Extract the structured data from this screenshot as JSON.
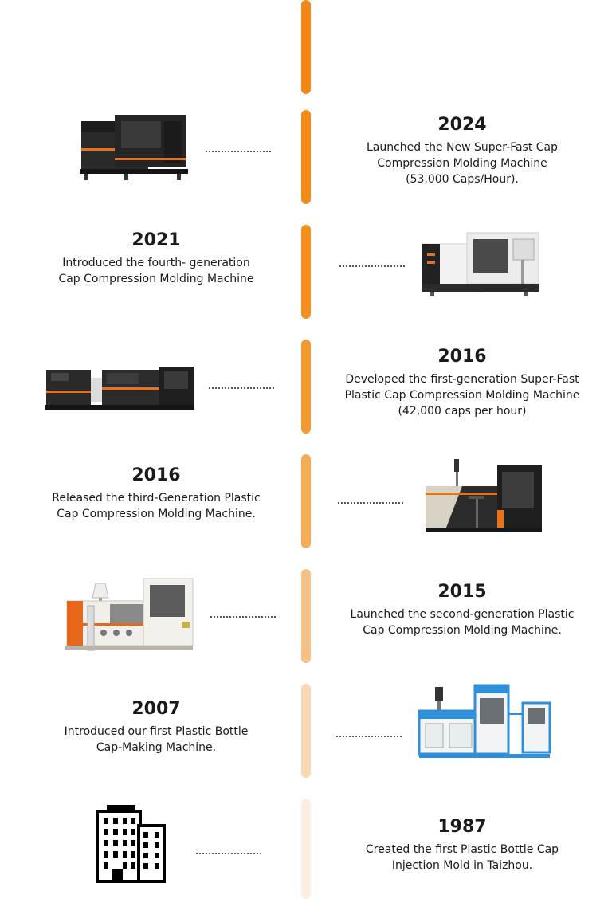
{
  "timeline": {
    "line_colors": [
      "#f0871a",
      "#f08a1c",
      "#f18f22",
      "#f29a35",
      "#f4ac55",
      "#f6c287",
      "#f8d8b4",
      "#fcefe2"
    ],
    "entries": [
      {
        "year": "2024",
        "description": "Launched the New Super-Fast Cap\nCompression Molding  Machine\n(53,000 Caps/Hour).",
        "image": "black-orange-compression-molding-machine"
      },
      {
        "year": "2021",
        "description": "Introduced the fourth- generation\nCap Compression Molding Machine",
        "image": "white-black-compression-molding-machine"
      },
      {
        "year": "2016",
        "description": "Developed the first-generation Super-Fast\nPlastic Cap Compression Molding Machine\n(42,000 caps per hour)",
        "image": "long-black-compression-molding-line"
      },
      {
        "year": "2016",
        "description": "Released the third-Generation Plastic\nCap Compression Molding Machine.",
        "image": "black-white-compression-molding-machine"
      },
      {
        "year": "2015",
        "description": "Launched the second-generation Plastic\nCap Compression Molding Machine.",
        "image": "white-orange-compression-molding-machine"
      },
      {
        "year": "2007",
        "description": "Introduced our first Plastic Bottle\nCap-Making Machine.",
        "image": "blue-white-cap-making-machine"
      },
      {
        "year": "1987",
        "description": "Created the first Plastic Bottle Cap\nInjection Mold in Taizhou.",
        "image": "office-building-icon"
      }
    ]
  }
}
